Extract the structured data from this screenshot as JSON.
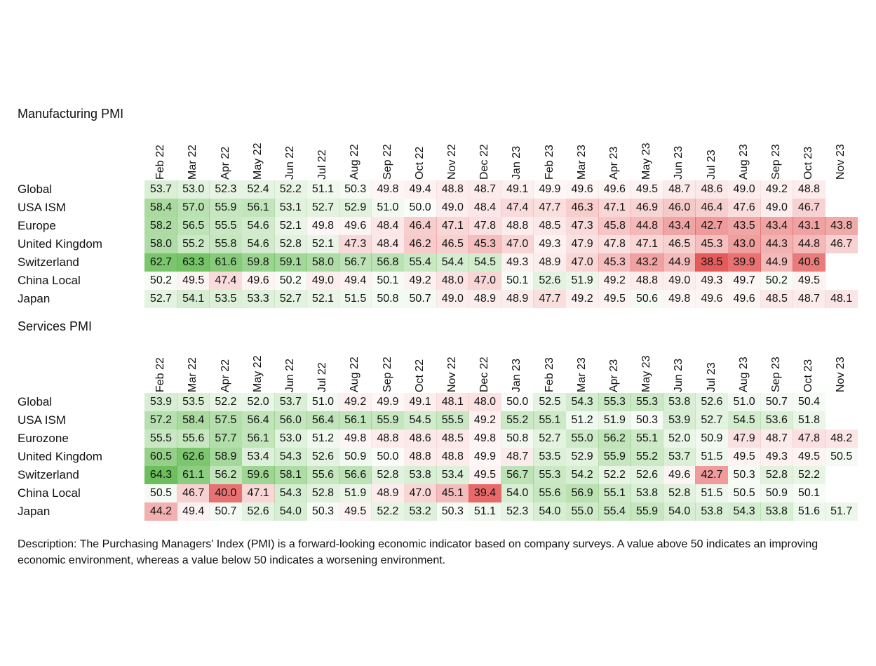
{
  "chart_data": [
    {
      "type": "heatmap",
      "title": "Manufacturing PMI",
      "months": [
        "Feb 22",
        "Mar 22",
        "Apr 22",
        "May 22",
        "Jun 22",
        "Jul 22",
        "Aug 22",
        "Sep 22",
        "Oct 22",
        "Nov 22",
        "Dec 22",
        "Jan 23",
        "Feb 23",
        "Mar 23",
        "Apr 23",
        "May 23",
        "Jun 23",
        "Jul 23",
        "Aug 23",
        "Sep 23",
        "Oct 23",
        "Nov 23"
      ],
      "rows": [
        {
          "name": "Global",
          "values": [
            "53.7",
            "53.0",
            "52.3",
            "52.4",
            "52.2",
            "51.1",
            "50.3",
            "49.8",
            "49.4",
            "48.8",
            "48.7",
            "49.1",
            "49.9",
            "49.6",
            "49.6",
            "49.5",
            "48.7",
            "48.6",
            "49.0",
            "49.2",
            "48.8",
            ""
          ]
        },
        {
          "name": "USA ISM",
          "values": [
            "58.4",
            "57.0",
            "55.9",
            "56.1",
            "53.1",
            "52.7",
            "52.9",
            "51.0",
            "50.0",
            "49.0",
            "48.4",
            "47.4",
            "47.7",
            "46.3",
            "47.1",
            "46.9",
            "46.0",
            "46.4",
            "47.6",
            "49.0",
            "46.7",
            ""
          ]
        },
        {
          "name": "Europe",
          "values": [
            "58.2",
            "56.5",
            "55.5",
            "54.6",
            "52.1",
            "49.8",
            "49.6",
            "48.4",
            "46.4",
            "47.1",
            "47.8",
            "48.8",
            "48.5",
            "47.3",
            "45.8",
            "44.8",
            "43.4",
            "42.7",
            "43.5",
            "43.4",
            "43.1",
            "43.8"
          ]
        },
        {
          "name": "United Kingdom",
          "values": [
            "58.0",
            "55.2",
            "55.8",
            "54.6",
            "52.8",
            "52.1",
            "47.3",
            "48.4",
            "46.2",
            "46.5",
            "45.3",
            "47.0",
            "49.3",
            "47.9",
            "47.8",
            "47.1",
            "46.5",
            "45.3",
            "43.0",
            "44.3",
            "44.8",
            "46.7"
          ]
        },
        {
          "name": "Switzerland",
          "values": [
            "62.7",
            "63.3",
            "61.6",
            "59.8",
            "59.1",
            "58.0",
            "56.7",
            "56.8",
            "55.4",
            "54.4",
            "54.5",
            "49.3",
            "48.9",
            "47.0",
            "45.3",
            "43.2",
            "44.9",
            "38.5",
            "39.9",
            "44.9",
            "40.6",
            ""
          ]
        },
        {
          "name": "China Local",
          "values": [
            "50.2",
            "49.5",
            "47.4",
            "49.6",
            "50.2",
            "49.0",
            "49.4",
            "50.1",
            "49.2",
            "48.0",
            "47.0",
            "50.1",
            "52.6",
            "51.9",
            "49.2",
            "48.8",
            "49.0",
            "49.3",
            "49.7",
            "50.2",
            "49.5",
            ""
          ]
        },
        {
          "name": "Japan",
          "values": [
            "52.7",
            "54.1",
            "53.5",
            "53.3",
            "52.7",
            "52.1",
            "51.5",
            "50.8",
            "50.7",
            "49.0",
            "48.9",
            "48.9",
            "47.7",
            "49.2",
            "49.5",
            "50.6",
            "49.8",
            "49.6",
            "49.6",
            "48.5",
            "48.7",
            "48.1"
          ]
        }
      ]
    },
    {
      "type": "heatmap",
      "title": "Services PMI",
      "months": [
        "Feb 22",
        "Mar 22",
        "Apr 22",
        "May 22",
        "Jun 22",
        "Jul 22",
        "Aug 22",
        "Sep 22",
        "Oct 22",
        "Nov 22",
        "Dec 22",
        "Jan 23",
        "Feb 23",
        "Mar 23",
        "Apr 23",
        "May 23",
        "Jun 23",
        "Jul 23",
        "Aug 23",
        "Sep 23",
        "Oct 23",
        "Nov 23"
      ],
      "rows": [
        {
          "name": "Global",
          "values": [
            "53.9",
            "53.5",
            "52.2",
            "52.0",
            "53.7",
            "51.0",
            "49.2",
            "49.9",
            "49.1",
            "48.1",
            "48.0",
            "50.0",
            "52.5",
            "54.3",
            "55.3",
            "55.3",
            "53.8",
            "52.6",
            "51.0",
            "50.7",
            "50.4",
            ""
          ]
        },
        {
          "name": "USA ISM",
          "values": [
            "57.2",
            "58.4",
            "57.5",
            "56.4",
            "56.0",
            "56.4",
            "56.1",
            "55.9",
            "54.5",
            "55.5",
            "49.2",
            "55.2",
            "55.1",
            "51.2",
            "51.9",
            "50.3",
            "53.9",
            "52.7",
            "54.5",
            "53.6",
            "51.8",
            ""
          ]
        },
        {
          "name": "Eurozone",
          "values": [
            "55.5",
            "55.6",
            "57.7",
            "56.1",
            "53.0",
            "51.2",
            "49.8",
            "48.8",
            "48.6",
            "48.5",
            "49.8",
            "50.8",
            "52.7",
            "55.0",
            "56.2",
            "55.1",
            "52.0",
            "50.9",
            "47.9",
            "48.7",
            "47.8",
            "48.2"
          ]
        },
        {
          "name": "United Kingdom",
          "values": [
            "60.5",
            "62.6",
            "58.9",
            "53.4",
            "54.3",
            "52.6",
            "50.9",
            "50.0",
            "48.8",
            "48.8",
            "49.9",
            "48.7",
            "53.5",
            "52.9",
            "55.9",
            "55.2",
            "53.7",
            "51.5",
            "49.5",
            "49.3",
            "49.5",
            "50.5"
          ]
        },
        {
          "name": "Switzerland",
          "values": [
            "64.3",
            "61.1",
            "56.2",
            "59.6",
            "58.1",
            "55.6",
            "56.6",
            "52.8",
            "53.8",
            "53.4",
            "49.5",
            "56.7",
            "55.3",
            "54.2",
            "52.2",
            "52.6",
            "49.6",
            "42.7",
            "50.3",
            "52.8",
            "52.2",
            ""
          ]
        },
        {
          "name": "China Local",
          "values": [
            "50.5",
            "46.7",
            "40.0",
            "47.1",
            "54.3",
            "52.8",
            "51.9",
            "48.9",
            "47.0",
            "45.1",
            "39.4",
            "54.0",
            "55.6",
            "56.9",
            "55.1",
            "53.8",
            "52.8",
            "51.5",
            "50.5",
            "50.9",
            "50.1",
            ""
          ]
        },
        {
          "name": "Japan",
          "values": [
            "44.2",
            "49.4",
            "50.7",
            "52.6",
            "54.0",
            "50.3",
            "49.5",
            "52.2",
            "53.2",
            "50.3",
            "51.1",
            "52.3",
            "54.0",
            "55.0",
            "55.4",
            "55.9",
            "54.0",
            "53.8",
            "54.3",
            "53.8",
            "51.6",
            "51.7"
          ]
        }
      ]
    }
  ],
  "description": "Description: The Purchasing Managers' Index (PMI) is a forward-looking economic indicator based on company surveys. A value above 50 indicates an improving economic environment, whereas a value below 50 indicates a worsening environment.",
  "colors": {
    "positive": "#5cb84a",
    "negative": "#e04040",
    "neutral": "#ffffff",
    "text": "#111111"
  }
}
